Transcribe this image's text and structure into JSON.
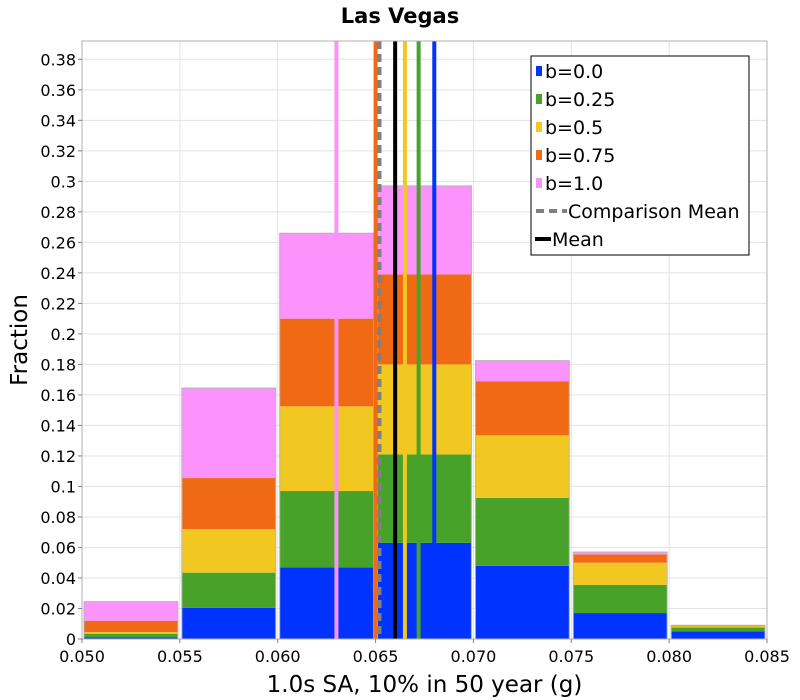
{
  "chart_data": {
    "type": "bar",
    "title": "Las Vegas",
    "xlabel": "1.0s SA, 10% in 50 year (g)",
    "ylabel": "Fraction",
    "xlim": [
      0.05,
      0.085
    ],
    "ylim": [
      0,
      0.392
    ],
    "x_ticks": [
      "0.050",
      "0.055",
      "0.060",
      "0.065",
      "0.070",
      "0.075",
      "0.080",
      "0.085"
    ],
    "y_ticks": [
      "0",
      "0.02",
      "0.04",
      "0.06",
      "0.08",
      "0.1",
      "0.12",
      "0.14",
      "0.16",
      "0.18",
      "0.2",
      "0.22",
      "0.24",
      "0.26",
      "0.28",
      "0.3",
      "0.32",
      "0.34",
      "0.36",
      "0.38"
    ],
    "bin_width": 0.005,
    "bins": [
      0.0525,
      0.0575,
      0.0625,
      0.0675,
      0.0725,
      0.0775,
      0.0825
    ],
    "stacked": true,
    "grid": true,
    "legend_position": "top-right",
    "series": [
      {
        "name": "b=0.0",
        "color": "#0033ff",
        "values": [
          0.001,
          0.0205,
          0.047,
          0.063,
          0.048,
          0.017,
          0.005
        ],
        "mean": 0.068
      },
      {
        "name": "b=0.25",
        "color": "#48a22a",
        "values": [
          0.0025,
          0.023,
          0.05,
          0.058,
          0.0445,
          0.0185,
          0.0025
        ],
        "mean": 0.0672
      },
      {
        "name": "b=0.5",
        "color": "#f1c822",
        "values": [
          0.001,
          0.0285,
          0.0555,
          0.059,
          0.041,
          0.0145,
          0.001
        ],
        "mean": 0.0665
      },
      {
        "name": "b=0.75",
        "color": "#f06a16",
        "values": [
          0.0075,
          0.0335,
          0.0575,
          0.059,
          0.0355,
          0.0055,
          0.0005
        ],
        "mean": 0.065
      },
      {
        "name": "b=1.0",
        "color": "#fc93fc",
        "values": [
          0.0125,
          0.059,
          0.056,
          0.058,
          0.0135,
          0.0015,
          0.0
        ],
        "mean": 0.063
      }
    ],
    "comparison_mean": {
      "name": "Comparison Mean",
      "value": 0.0652,
      "color": "#808080",
      "style": "dashed"
    },
    "overall_mean": {
      "name": "Mean",
      "value": 0.066,
      "color": "#000000"
    }
  }
}
